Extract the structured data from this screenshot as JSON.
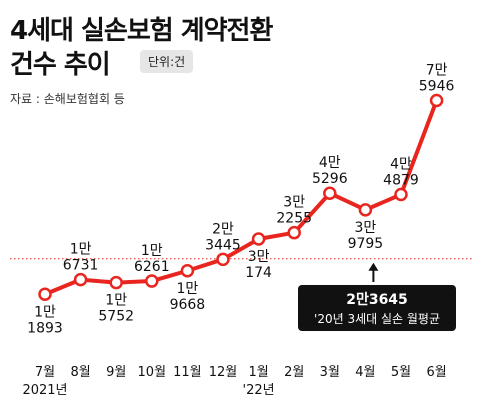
{
  "title_line1": "4세대 실손보험 계약전환",
  "title_line2": "건수 추이",
  "unit": "단위:건",
  "source": "자료 : 손해보험협회 등",
  "chart_data": {
    "type": "line",
    "title": "4세대 실손보험 계약전환 건수 추이",
    "unit": "단위:건",
    "x": [
      "7월",
      "8월",
      "9월",
      "10월",
      "11월",
      "12월",
      "1월",
      "2월",
      "3월",
      "4월",
      "5월",
      "6월"
    ],
    "x_sublabels": [
      "2021년",
      "",
      "",
      "",
      "",
      "",
      "'22년",
      "",
      "",
      "",
      "",
      ""
    ],
    "values": [
      11893,
      16731,
      15752,
      16261,
      19668,
      23445,
      30174,
      32255,
      45296,
      39795,
      44879,
      75946
    ],
    "value_labels": [
      [
        "1만",
        "1893"
      ],
      [
        "1만",
        "6731"
      ],
      [
        "1만",
        "5752"
      ],
      [
        "1만",
        "6261"
      ],
      [
        "1만",
        "9668"
      ],
      [
        "2만",
        "3445"
      ],
      [
        "3만",
        "174"
      ],
      [
        "3만",
        "2255"
      ],
      [
        "4만",
        "5296"
      ],
      [
        "3만",
        "9795"
      ],
      [
        "4만",
        "4879"
      ],
      [
        "7만",
        "5946"
      ]
    ],
    "label_positions": [
      "below",
      "above",
      "below",
      "above",
      "below",
      "above",
      "below",
      "above",
      "above",
      "below",
      "above",
      "above"
    ],
    "series_color": "#e8261f",
    "reference_line": {
      "value": 23645,
      "label_value": "2만3645",
      "label_text": "'20년 3세대 실손 월평균",
      "color": "#e8261f",
      "style": "dotted"
    },
    "ylim": [
      0,
      80000
    ],
    "grid": false,
    "legend": "none"
  }
}
